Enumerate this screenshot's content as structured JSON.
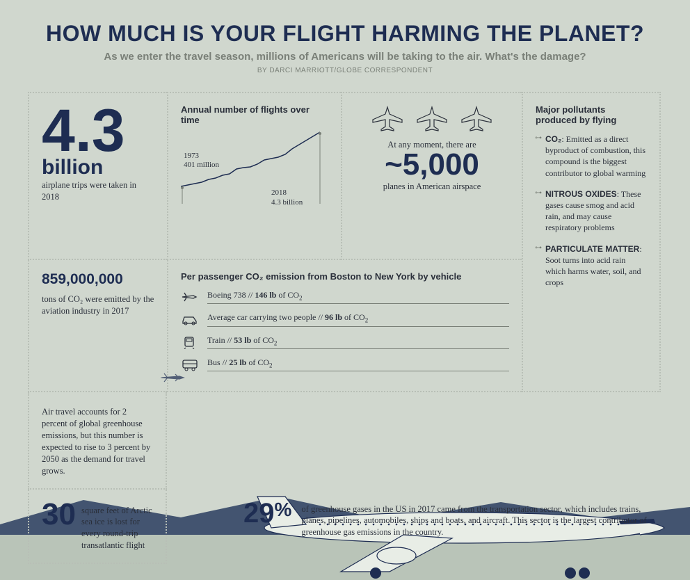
{
  "header": {
    "title": "HOW MUCH IS YOUR FLIGHT HARMING THE PLANET?",
    "subtitle": "As we enter the travel season, millions of Americans will be taking to the air. What's the damage?",
    "byline": "BY DARCI MARRIOTT/GLOBE CORRESPONDENT"
  },
  "stat_trips": {
    "number": "4.3",
    "unit": "billion",
    "caption": "airplane trips were taken in 2018"
  },
  "chart": {
    "title": "Annual number of flights over time",
    "start_year": "1973",
    "start_value": "401 million",
    "end_year": "2018",
    "end_value": "4.3 billion",
    "points": [
      [
        0,
        80
      ],
      [
        10,
        78
      ],
      [
        20,
        76
      ],
      [
        30,
        74
      ],
      [
        40,
        70
      ],
      [
        50,
        68
      ],
      [
        60,
        64
      ],
      [
        70,
        62
      ],
      [
        80,
        55
      ],
      [
        90,
        53
      ],
      [
        100,
        52
      ],
      [
        110,
        48
      ],
      [
        120,
        42
      ],
      [
        130,
        40
      ],
      [
        140,
        38
      ],
      [
        150,
        34
      ],
      [
        160,
        26
      ],
      [
        170,
        20
      ],
      [
        180,
        14
      ],
      [
        190,
        8
      ],
      [
        200,
        2
      ]
    ],
    "stroke": "#1e2d52"
  },
  "airspace": {
    "lead": "At any moment, there are",
    "number": "~5,000",
    "caption": "planes in American airspace"
  },
  "pollutants": {
    "title": "Major pollutants produced by flying",
    "items": [
      {
        "name": "CO₂",
        "desc": ": Emitted as a direct byproduct of combustion, this compound is the biggest contributor to global warming"
      },
      {
        "name": "NITROUS OXIDES",
        "desc": ": These gases cause smog and acid rain, and may cause respiratory problems"
      },
      {
        "name": "PARTICULATE MATTER",
        "desc": ": Soot turns into acid rain which harms water, soil, and crops"
      }
    ]
  },
  "co2_2017": {
    "number": "859,000,000",
    "caption": "tons of CO₂ were emitted by the aviation industry in 2017"
  },
  "vehicles": {
    "title": "Per passenger CO₂ emission from Boston to New York by vehicle",
    "items": [
      {
        "icon": "plane",
        "label_pre": "Boeing 738 // ",
        "value": "146 lb",
        "label_post": " of CO₂"
      },
      {
        "icon": "car",
        "label_pre": "Average car carrying two people // ",
        "value": "96 lb",
        "label_post": " of CO₂"
      },
      {
        "icon": "train",
        "label_pre": "Train // ",
        "value": "53 lb",
        "label_post": " of CO₂"
      },
      {
        "icon": "bus",
        "label_pre": "Bus // ",
        "value": "25 lb",
        "label_post": " of CO₂"
      }
    ]
  },
  "air_travel_text": "Air travel accounts for 2 percent of global greenhouse emissions, but this number is expected to rise to 3 percent by 2050 as the demand for travel grows.",
  "arctic": {
    "number": "30",
    "caption": "square feet of Arctic sea ice is lost for every round-trip transatlantic flight"
  },
  "ghg": {
    "number": "29",
    "pct": "%",
    "caption": "of greenhouse gases in the US in 2017 came from the transportation sector, which includes trains, planes, pipelines, automobiles, ships and boats, and aircraft. This sector is the largest contributor of greenhouse gas emissions in the country."
  },
  "colors": {
    "bg": "#d0d7ce",
    "navy": "#1e2d52",
    "gray": "#7a8078",
    "border": "#b8bfb6",
    "mountain": "#2a3d5f",
    "runway": "#b9c4b8"
  }
}
